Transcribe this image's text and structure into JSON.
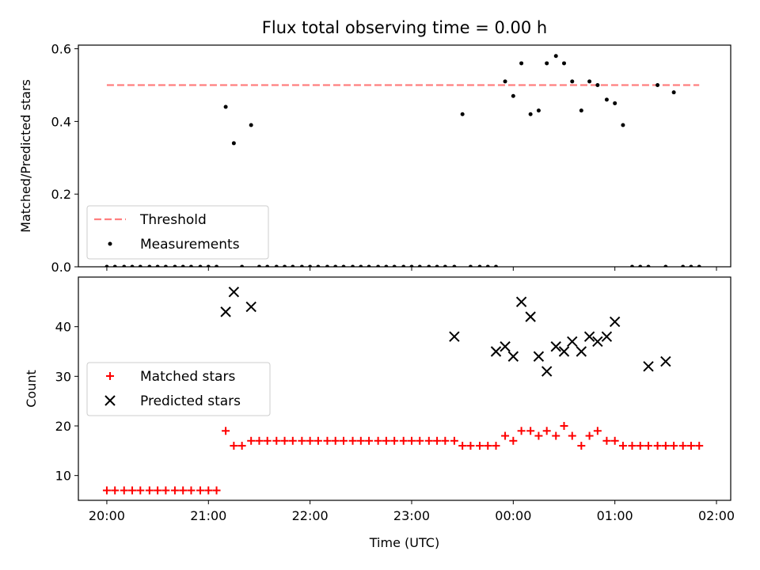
{
  "title": "Flux total observing time = 0.00 h",
  "chart_data": [
    {
      "type": "scatter",
      "ylabel": "Matched/Predicted stars",
      "ylim": [
        0,
        0.61
      ],
      "yticks": [
        0.0,
        0.2,
        0.4,
        0.6
      ],
      "ytick_labels": [
        "0.0",
        "0.2",
        "0.4",
        "0.6"
      ],
      "xlim": [
        19.72,
        26.14
      ],
      "legend_position": "lower left",
      "threshold": {
        "name": "Threshold",
        "value": 0.5,
        "x_start": 20.0,
        "x_end": 25.83,
        "color": "#ff7f7f"
      },
      "series": [
        {
          "name": "Measurements",
          "color": "#000000",
          "x": [
            20.0,
            20.08,
            20.17,
            20.25,
            20.33,
            20.42,
            20.5,
            20.58,
            20.67,
            20.75,
            20.83,
            20.92,
            21.0,
            21.08,
            21.17,
            21.25,
            21.33,
            21.42,
            21.5,
            21.58,
            21.67,
            21.75,
            21.83,
            21.92,
            22.0,
            22.08,
            22.17,
            22.25,
            22.33,
            22.42,
            22.5,
            22.58,
            22.67,
            22.75,
            22.83,
            22.92,
            23.0,
            23.08,
            23.17,
            23.25,
            23.33,
            23.42,
            23.5,
            23.58,
            23.67,
            23.75,
            23.83,
            23.92,
            24.0,
            24.08,
            24.17,
            24.25,
            24.33,
            24.42,
            24.5,
            24.58,
            24.67,
            24.75,
            24.83,
            24.92,
            25.0,
            25.08,
            25.17,
            25.25,
            25.33,
            25.42,
            25.5,
            25.58,
            25.67,
            25.75,
            25.83
          ],
          "y": [
            0,
            0,
            0,
            0,
            0,
            0,
            0,
            0,
            0,
            0,
            0,
            0,
            0,
            0,
            0.44,
            0.34,
            0,
            0.39,
            0,
            0,
            0,
            0,
            0,
            0,
            0,
            0,
            0,
            0,
            0,
            0,
            0,
            0,
            0,
            0,
            0,
            0,
            0,
            0,
            0,
            0,
            0,
            0,
            0.42,
            0,
            0,
            0,
            0,
            0.51,
            0.47,
            0.56,
            0.42,
            0.43,
            0.56,
            0.58,
            0.56,
            0.51,
            0.43,
            0.51,
            0.5,
            0.46,
            0.45,
            0.39,
            0,
            0,
            0,
            0.5,
            0,
            0.48,
            0,
            0,
            0
          ]
        }
      ]
    },
    {
      "type": "scatter",
      "xlabel": "Time (UTC)",
      "ylabel": "Count",
      "ylim": [
        5,
        50
      ],
      "yticks": [
        10,
        20,
        30,
        40
      ],
      "ytick_labels": [
        "10",
        "20",
        "30",
        "40"
      ],
      "xlim": [
        19.72,
        26.14
      ],
      "xticks": [
        20,
        21,
        22,
        23,
        24,
        25,
        26
      ],
      "xtick_labels": [
        "20:00",
        "21:00",
        "22:00",
        "23:00",
        "00:00",
        "01:00",
        "02:00"
      ],
      "legend_position": "center left",
      "series": [
        {
          "name": "Matched stars",
          "marker": "plus",
          "color": "#ff0000",
          "x": [
            20.0,
            20.08,
            20.17,
            20.25,
            20.33,
            20.42,
            20.5,
            20.58,
            20.67,
            20.75,
            20.83,
            20.92,
            21.0,
            21.08,
            21.17,
            21.25,
            21.33,
            21.42,
            21.5,
            21.58,
            21.67,
            21.75,
            21.83,
            21.92,
            22.0,
            22.08,
            22.17,
            22.25,
            22.33,
            22.42,
            22.5,
            22.58,
            22.67,
            22.75,
            22.83,
            22.92,
            23.0,
            23.08,
            23.17,
            23.25,
            23.33,
            23.42,
            23.5,
            23.58,
            23.67,
            23.75,
            23.83,
            23.92,
            24.0,
            24.08,
            24.17,
            24.25,
            24.33,
            24.42,
            24.5,
            24.58,
            24.67,
            24.75,
            24.83,
            24.92,
            25.0,
            25.08,
            25.17,
            25.25,
            25.33,
            25.42,
            25.5,
            25.58,
            25.67,
            25.75,
            25.83
          ],
          "y": [
            7,
            7,
            7,
            7,
            7,
            7,
            7,
            7,
            7,
            7,
            7,
            7,
            7,
            7,
            19,
            16,
            16,
            17,
            17,
            17,
            17,
            17,
            17,
            17,
            17,
            17,
            17,
            17,
            17,
            17,
            17,
            17,
            17,
            17,
            17,
            17,
            17,
            17,
            17,
            17,
            17,
            17,
            16,
            16,
            16,
            16,
            16,
            18,
            17,
            19,
            19,
            18,
            19,
            18,
            20,
            18,
            16,
            18,
            19,
            17,
            17,
            16,
            16,
            16,
            16,
            16,
            16,
            16,
            16,
            16,
            16
          ]
        },
        {
          "name": "Predicted stars",
          "marker": "x",
          "color": "#000000",
          "x": [
            21.17,
            21.25,
            21.42,
            23.42,
            23.83,
            23.92,
            24.0,
            24.08,
            24.17,
            24.25,
            24.33,
            24.42,
            24.5,
            24.58,
            24.67,
            24.75,
            24.83,
            24.92,
            25.0,
            25.33,
            25.5
          ],
          "y": [
            43,
            47,
            44,
            38,
            35,
            36,
            34,
            45,
            42,
            34,
            31,
            36,
            35,
            37,
            35,
            38,
            37,
            38,
            41,
            32,
            33
          ]
        }
      ]
    }
  ]
}
